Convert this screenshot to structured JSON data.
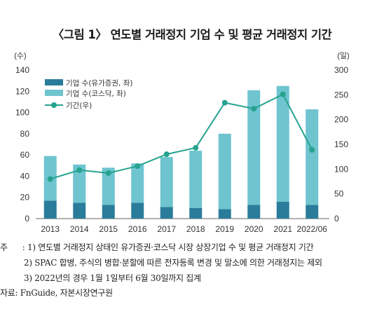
{
  "title": "〈그림 1〉 연도별 거래정지 기업 수 및 평균 거래정지 기간",
  "chart_data": {
    "type": "bar",
    "stacked": true,
    "categories": [
      "2013",
      "2014",
      "2015",
      "2016",
      "2017",
      "2018",
      "2019",
      "2020",
      "2021",
      "2022/06"
    ],
    "series": [
      {
        "name": "기업 수(유가증권, 좌)",
        "axis": "left",
        "kind": "bar",
        "color": "#2a7d9a",
        "values": [
          17,
          15,
          13,
          15,
          11,
          10,
          9,
          13,
          16,
          13
        ]
      },
      {
        "name": "기업 수(코스닥, 좌)",
        "axis": "left",
        "kind": "bar",
        "color": "#6ec4cf",
        "values": [
          42,
          36,
          35,
          37,
          47,
          54,
          71,
          108,
          109,
          90
        ]
      },
      {
        "name": "기간(우)",
        "axis": "right",
        "kind": "line",
        "color": "#26a38f",
        "values": [
          80,
          98,
          92,
          106,
          130,
          143,
          234,
          222,
          251,
          139
        ]
      }
    ],
    "y_left": {
      "unit": "(수)",
      "min": 0,
      "max": 140,
      "ticks": [
        0,
        20,
        40,
        60,
        80,
        100,
        120,
        140
      ]
    },
    "y_right": {
      "unit": "(일)",
      "min": 0,
      "max": 300,
      "ticks": [
        0,
        50,
        100,
        150,
        200,
        250,
        300
      ]
    },
    "legend_position": "top-left",
    "grid": false
  },
  "notes": [
    {
      "prefix": "주",
      "sep": ":",
      "text": "1) 연도별 거래정지 상태인 유가증권·코스닥 시장 상장기업 수 및 평균 거래정지 기간"
    },
    {
      "text": "2) SPAC 합병, 주식의 병합·분할에 따른 전자등록 변경 및 말소에 의한 거래정지는 제외"
    },
    {
      "text": "3) 2022년의 경우 1월 1일부터 6월 30일까지 집계"
    },
    {
      "text": "자료: FnGuide, 자본시장연구원"
    }
  ]
}
